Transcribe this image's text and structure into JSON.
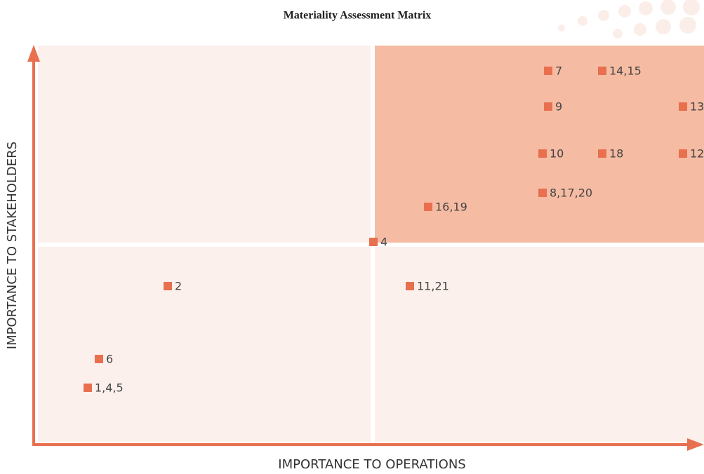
{
  "title": "Materiality Assessment Matrix",
  "x_axis_label": "IMPORTANCE TO OPERATIONS",
  "y_axis_label": "IMPORTANCE TO STAKEHOLDERS",
  "items": [
    {
      "label": "7"
    },
    {
      "label": "14,15"
    },
    {
      "label": "9"
    },
    {
      "label": "13"
    },
    {
      "label": "10"
    },
    {
      "label": "18"
    },
    {
      "label": "12"
    },
    {
      "label": "8,17,20"
    },
    {
      "label": "16,19"
    },
    {
      "label": "4"
    },
    {
      "label": "2"
    },
    {
      "label": "11,21"
    },
    {
      "label": "6"
    },
    {
      "label": "1,4,5"
    }
  ]
}
